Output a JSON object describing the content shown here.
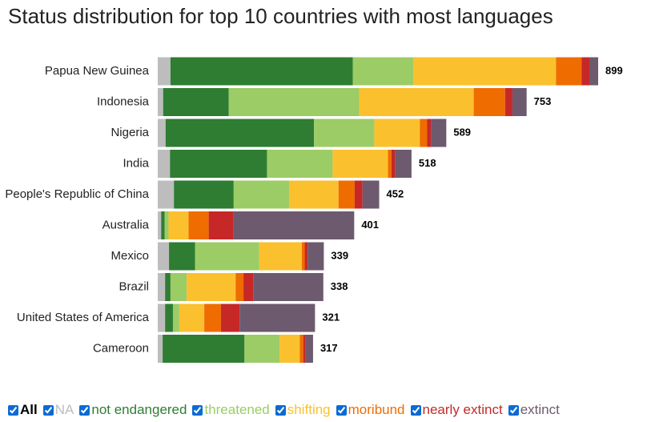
{
  "chart_data": {
    "type": "stacked-bar-horizontal",
    "title": "Status distribution for top 10 countries with most languages",
    "categories": [
      "Papua New Guinea",
      "Indonesia",
      "Nigeria",
      "India",
      "People's Republic of China",
      "Australia",
      "Mexico",
      "Brazil",
      "United States of America",
      "Cameroon"
    ],
    "totals": [
      899,
      753,
      589,
      518,
      452,
      401,
      339,
      338,
      321,
      317
    ],
    "legend_all": "All",
    "series": [
      {
        "name": "NA",
        "color": "#bdbdbd",
        "values": [
          26,
          11,
          16,
          25,
          33,
          7,
          23,
          15,
          15,
          10
        ]
      },
      {
        "name": "not endangered",
        "color": "#2e7d32",
        "values": [
          372,
          134,
          303,
          198,
          122,
          7,
          53,
          11,
          16,
          167
        ]
      },
      {
        "name": "threatened",
        "color": "#9ccc65",
        "values": [
          124,
          266,
          123,
          134,
          113,
          8,
          131,
          33,
          13,
          72
        ]
      },
      {
        "name": "shifting",
        "color": "#fbc02d",
        "values": [
          291,
          234,
          93,
          113,
          101,
          41,
          87,
          100,
          51,
          41
        ]
      },
      {
        "name": "moribund",
        "color": "#ef6c00",
        "values": [
          52,
          64,
          15,
          7,
          33,
          41,
          6,
          16,
          34,
          7
        ]
      },
      {
        "name": "nearly extinct",
        "color": "#c62828",
        "values": [
          16,
          15,
          8,
          7,
          16,
          51,
          6,
          20,
          38,
          5
        ]
      },
      {
        "name": "extinct",
        "color": "#6d5a6e",
        "values": [
          18,
          29,
          31,
          34,
          34,
          246,
          33,
          143,
          154,
          15
        ]
      }
    ]
  }
}
